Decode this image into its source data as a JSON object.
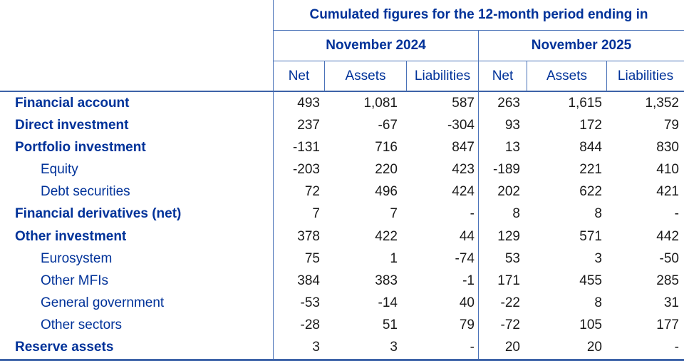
{
  "chart_data": {
    "type": "table",
    "title": "Cumulated figures for the 12-month period ending in",
    "column_groups": [
      "November 2024",
      "November 2025"
    ],
    "columns": [
      "Net",
      "Assets",
      "Liabilities",
      "Net",
      "Assets",
      "Liabilities"
    ],
    "rows": [
      {
        "label": "Financial account",
        "emphasis": "bold",
        "cells": [
          "493",
          "1,081",
          "587",
          "263",
          "1,615",
          "1,352"
        ]
      },
      {
        "label": "Direct investment",
        "emphasis": "bold",
        "cells": [
          "237",
          "-67",
          "-304",
          "93",
          "172",
          "79"
        ]
      },
      {
        "label": "Portfolio investment",
        "emphasis": "bold",
        "cells": [
          "-131",
          "716",
          "847",
          "13",
          "844",
          "830"
        ]
      },
      {
        "label": "Equity",
        "emphasis": "indent",
        "cells": [
          "-203",
          "220",
          "423",
          "-189",
          "221",
          "410"
        ]
      },
      {
        "label": "Debt securities",
        "emphasis": "indent",
        "cells": [
          "72",
          "496",
          "424",
          "202",
          "622",
          "421"
        ]
      },
      {
        "label": "Financial derivatives (net)",
        "emphasis": "bold",
        "cells": [
          "7",
          "7",
          "-",
          "8",
          "8",
          "-"
        ]
      },
      {
        "label": "Other investment",
        "emphasis": "bold",
        "cells": [
          "378",
          "422",
          "44",
          "129",
          "571",
          "442"
        ]
      },
      {
        "label": "Eurosystem",
        "emphasis": "indent",
        "cells": [
          "75",
          "1",
          "-74",
          "53",
          "3",
          "-50"
        ]
      },
      {
        "label": "Other MFIs",
        "emphasis": "indent",
        "cells": [
          "384",
          "383",
          "-1",
          "171",
          "455",
          "285"
        ]
      },
      {
        "label": "General government",
        "emphasis": "indent",
        "cells": [
          "-53",
          "-14",
          "40",
          "-22",
          "8",
          "31"
        ]
      },
      {
        "label": "Other sectors",
        "emphasis": "indent",
        "cells": [
          "-28",
          "51",
          "79",
          "-72",
          "105",
          "177"
        ]
      },
      {
        "label": "Reserve assets",
        "emphasis": "bold",
        "cells": [
          "3",
          "3",
          "-",
          "20",
          "20",
          "-"
        ]
      }
    ],
    "colors": {
      "label_blue": "#003299",
      "number_black": "#1a1a1a",
      "border_blue": "#4a72b8",
      "rule_blue": "#3d63a8",
      "background": "#ffffff"
    },
    "layout": {
      "grid": "header rules and column boxes only; no row gridlines",
      "nil_symbol": "-"
    }
  }
}
